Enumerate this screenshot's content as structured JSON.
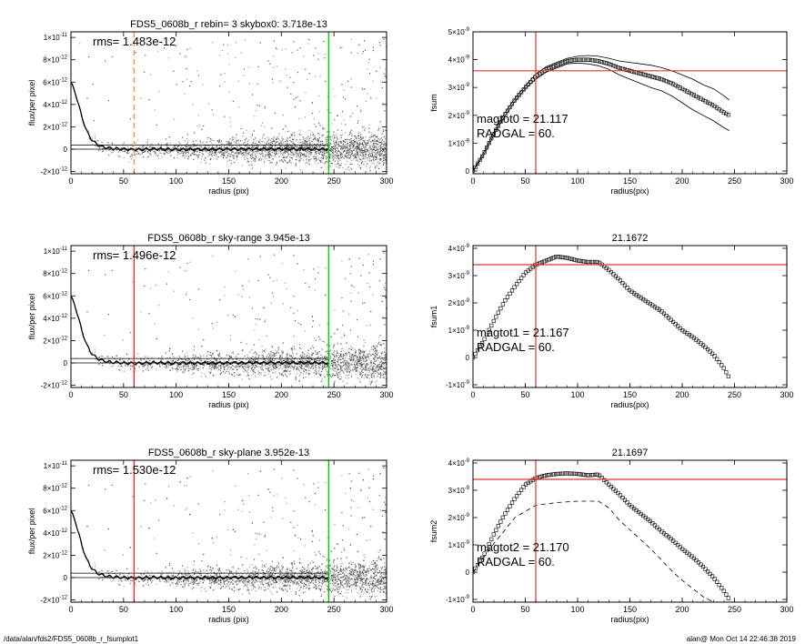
{
  "footer": {
    "path": "/data/alan/fds2/FDS5_0608b_r_fsumplot1",
    "stamp": "alan@  Mon Oct 14 22:46:38 2019"
  },
  "chart_data": [
    {
      "id": "profile0",
      "type": "scatter",
      "title": "FDS5_0608b_r rebin= 3    skybox0:  3.718e-13",
      "xlabel": "radius (pix)",
      "ylabel": "flux/per pixel",
      "xlim": [
        0,
        300
      ],
      "ylim": [
        -2.2e-12,
        1.05e-11
      ],
      "xticks": [
        0,
        50,
        100,
        150,
        200,
        250,
        300
      ],
      "xtick_labels": [
        "0",
        "50",
        "100",
        "150",
        "200",
        "250",
        "300"
      ],
      "yticks": [
        -2e-12,
        0,
        2e-12,
        4e-12,
        6e-12,
        8e-12,
        1e-11
      ],
      "ytick_labels": [
        [
          "-2×10",
          "-12"
        ],
        [
          "0",
          ""
        ],
        [
          "2×10",
          "-12"
        ],
        [
          "4×10",
          "-12"
        ],
        [
          "6×10",
          "-12"
        ],
        [
          "8×10",
          "-12"
        ],
        [
          "1×10",
          "-11"
        ]
      ],
      "annotation": "rms= 1.483e-12",
      "rms": 1.483e-12,
      "sky_level": 3.718e-13,
      "vlines": [
        {
          "x": 60,
          "color": "#e89a3c",
          "style": "dashed"
        },
        {
          "x": 245,
          "color": "#00cc00",
          "style": "solid"
        }
      ],
      "profile": {
        "x": [
          0,
          5,
          10,
          15,
          20,
          25,
          30,
          40,
          50,
          60,
          80,
          100,
          150,
          200,
          245
        ],
        "y": [
          6e-12,
          4.8e-12,
          3e-12,
          1.6e-12,
          8e-13,
          4e-13,
          2e-13,
          5e-14,
          0,
          -5e-14,
          2e-14,
          -3e-14,
          0,
          1e-14,
          0
        ]
      }
    },
    {
      "id": "fsum0",
      "type": "line",
      "title": "",
      "xlabel": "radius(pix)",
      "ylabel": "fsum",
      "xlim": [
        0,
        300
      ],
      "ylim": [
        -1e-10,
        5e-09
      ],
      "xticks": [
        0,
        50,
        100,
        150,
        200,
        250,
        300
      ],
      "xtick_labels": [
        "0",
        "50",
        "100",
        "150",
        "200",
        "250",
        "300"
      ],
      "yticks": [
        0,
        1e-09,
        2e-09,
        3e-09,
        4e-09,
        5e-09
      ],
      "ytick_labels": [
        [
          "0",
          ""
        ],
        [
          "1×10",
          "-9"
        ],
        [
          "2×10",
          "-9"
        ],
        [
          "3×10",
          "-9"
        ],
        [
          "4×10",
          "-9"
        ],
        [
          "5×10",
          "-9"
        ]
      ],
      "annotations": [
        "magtot0 =  21.117",
        "RADGAL =     60."
      ],
      "hline": 3.6e-09,
      "vline": 60,
      "series": [
        {
          "x": [
            0,
            10,
            20,
            30,
            40,
            50,
            60,
            70,
            80,
            90,
            100,
            110,
            120,
            130,
            140,
            150,
            160,
            170,
            180,
            190,
            200,
            210,
            220,
            230,
            240,
            245
          ],
          "y": [
            0,
            6e-10,
            1.35e-09,
            2e-09,
            2.55e-09,
            3e-09,
            3.4e-09,
            3.65e-09,
            3.8e-09,
            3.95e-09,
            4e-09,
            4e-09,
            3.95e-09,
            3.85e-09,
            3.7e-09,
            3.6e-09,
            3.5e-09,
            3.4e-09,
            3.3e-09,
            3.15e-09,
            2.95e-09,
            2.75e-09,
            2.55e-09,
            2.35e-09,
            2.1e-09,
            2e-09
          ]
        }
      ],
      "upper_band": [
        0,
        6.5e-10,
        1.4e-09,
        2.05e-09,
        2.6e-09,
        3.05e-09,
        3.48e-09,
        3.75e-09,
        3.9e-09,
        4.05e-09,
        4.12e-09,
        4.15e-09,
        4.12e-09,
        4.05e-09,
        3.95e-09,
        3.9e-09,
        3.85e-09,
        3.8e-09,
        3.72e-09,
        3.6e-09,
        3.45e-09,
        3.3e-09,
        3.1e-09,
        2.95e-09,
        2.7e-09,
        2.55e-09
      ],
      "lower_band": [
        0,
        5.5e-10,
        1.3e-09,
        1.95e-09,
        2.5e-09,
        2.95e-09,
        3.3e-09,
        3.55e-09,
        3.7e-09,
        3.85e-09,
        3.88e-09,
        3.85e-09,
        3.78e-09,
        3.65e-09,
        3.45e-09,
        3.3e-09,
        3.15e-09,
        3e-09,
        2.88e-09,
        2.7e-09,
        2.45e-09,
        2.2e-09,
        2e-09,
        1.8e-09,
        1.55e-09,
        1.45e-09
      ]
    },
    {
      "id": "profile1",
      "type": "scatter",
      "title": "FDS5_0608b_r sky-range  3.945e-13",
      "xlabel": "radius (pix)",
      "ylabel": "flux/per pixel",
      "xlim": [
        0,
        300
      ],
      "ylim": [
        -2.2e-12,
        1.05e-11
      ],
      "xticks": [
        0,
        50,
        100,
        150,
        200,
        250,
        300
      ],
      "xtick_labels": [
        "0",
        "50",
        "100",
        "150",
        "200",
        "250",
        "300"
      ],
      "yticks": [
        -2e-12,
        0,
        2e-12,
        4e-12,
        6e-12,
        8e-12,
        1e-11
      ],
      "ytick_labels": [
        [
          "-2×10",
          "-12"
        ],
        [
          "0",
          ""
        ],
        [
          "2×10",
          "-12"
        ],
        [
          "4×10",
          "-12"
        ],
        [
          "6×10",
          "-12"
        ],
        [
          "8×10",
          "-12"
        ],
        [
          "1×10",
          "-11"
        ]
      ],
      "annotation": "rms= 1.496e-12",
      "rms": 1.496e-12,
      "sky_level": 3.945e-13,
      "vlines": [
        {
          "x": 60,
          "color": "#e8302a",
          "style": "solid"
        },
        {
          "x": 245,
          "color": "#00cc00",
          "style": "solid"
        }
      ],
      "profile": {
        "x": [
          0,
          5,
          10,
          15,
          20,
          25,
          30,
          40,
          50,
          60,
          80,
          100,
          150,
          200,
          245
        ],
        "y": [
          6e-12,
          4.8e-12,
          3e-12,
          1.6e-12,
          8e-13,
          4e-13,
          2e-13,
          5e-14,
          0,
          -5e-14,
          2e-14,
          -3e-14,
          0,
          1e-14,
          0
        ]
      }
    },
    {
      "id": "fsum1",
      "type": "scatter",
      "title": "21.1672",
      "xlabel": "radius(pix)",
      "ylabel": "fsum1",
      "xlim": [
        0,
        300
      ],
      "ylim": [
        -1.1e-09,
        4.1e-09
      ],
      "xticks": [
        0,
        50,
        100,
        150,
        200,
        250,
        300
      ],
      "xtick_labels": [
        "0",
        "50",
        "100",
        "150",
        "200",
        "250",
        "300"
      ],
      "yticks": [
        -1e-09,
        0,
        1e-09,
        2e-09,
        3e-09,
        4e-09
      ],
      "ytick_labels": [
        [
          "-1×10",
          "-9"
        ],
        [
          "0",
          ""
        ],
        [
          "1×10",
          "-9"
        ],
        [
          "2×10",
          "-9"
        ],
        [
          "3×10",
          "-9"
        ],
        [
          "4×10",
          "-9"
        ]
      ],
      "annotations": [
        "magtot1 =  21.167",
        "RADGAL =     60."
      ],
      "hline": 3.4e-09,
      "vline": 60,
      "series": [
        {
          "x": [
            0,
            10,
            20,
            30,
            40,
            50,
            60,
            70,
            80,
            90,
            100,
            110,
            120,
            130,
            140,
            150,
            160,
            170,
            180,
            190,
            200,
            210,
            220,
            230,
            240,
            245
          ],
          "y": [
            0,
            6e-10,
            1.35e-09,
            2.05e-09,
            2.6e-09,
            3.1e-09,
            3.4e-09,
            3.55e-09,
            3.7e-09,
            3.65e-09,
            3.55e-09,
            3.5e-09,
            3.5e-09,
            3.2e-09,
            2.85e-09,
            2.45e-09,
            2.2e-09,
            1.95e-09,
            1.7e-09,
            1.35e-09,
            1e-09,
            7.5e-10,
            4.5e-10,
            1e-10,
            -4e-10,
            -7.5e-10
          ]
        }
      ]
    },
    {
      "id": "profile2",
      "type": "scatter",
      "title": "FDS5_0608b_r sky-plane  3.952e-13",
      "xlabel": "radius (pix)",
      "ylabel": "flux/per pixel",
      "xlim": [
        0,
        300
      ],
      "ylim": [
        -2.2e-12,
        1.05e-11
      ],
      "xticks": [
        0,
        50,
        100,
        150,
        200,
        250,
        300
      ],
      "xtick_labels": [
        "0",
        "50",
        "100",
        "150",
        "200",
        "250",
        "300"
      ],
      "yticks": [
        -2e-12,
        0,
        2e-12,
        4e-12,
        6e-12,
        8e-12,
        1e-11
      ],
      "ytick_labels": [
        [
          "-2×10",
          "-12"
        ],
        [
          "0",
          ""
        ],
        [
          "2×10",
          "-12"
        ],
        [
          "4×10",
          "-12"
        ],
        [
          "6×10",
          "-12"
        ],
        [
          "8×10",
          "-12"
        ],
        [
          "1×10",
          "-11"
        ]
      ],
      "annotation": "rms= 1.530e-12",
      "rms": 1.53e-12,
      "sky_level": 3.952e-13,
      "vlines": [
        {
          "x": 60,
          "color": "#e8302a",
          "style": "solid"
        },
        {
          "x": 245,
          "color": "#00cc00",
          "style": "solid"
        }
      ],
      "profile": {
        "x": [
          0,
          5,
          10,
          15,
          20,
          25,
          30,
          40,
          50,
          60,
          80,
          100,
          150,
          200,
          245
        ],
        "y": [
          6e-12,
          4.8e-12,
          3e-12,
          1.6e-12,
          8e-13,
          4e-13,
          2e-13,
          5e-14,
          0,
          -5e-14,
          2e-14,
          -3e-14,
          0,
          1e-14,
          0
        ]
      }
    },
    {
      "id": "fsum2",
      "type": "scatter",
      "title": "21.1697",
      "xlabel": "radius(pix)",
      "ylabel": "fsum2",
      "xlim": [
        0,
        300
      ],
      "ylim": [
        -1.1e-09,
        4.1e-09
      ],
      "xticks": [
        0,
        50,
        100,
        150,
        200,
        250,
        300
      ],
      "xtick_labels": [
        "0",
        "50",
        "100",
        "150",
        "200",
        "250",
        "300"
      ],
      "yticks": [
        -1e-09,
        0,
        1e-09,
        2e-09,
        3e-09,
        4e-09
      ],
      "ytick_labels": [
        [
          "-1×10",
          "-9"
        ],
        [
          "0",
          ""
        ],
        [
          "1×10",
          "-9"
        ],
        [
          "2×10",
          "-9"
        ],
        [
          "3×10",
          "-9"
        ],
        [
          "4×10",
          "-9"
        ]
      ],
      "annotations": [
        "magtot2 =  21.170",
        "RADGAL =     60."
      ],
      "hline": 3.4e-09,
      "vline": 60,
      "series": [
        {
          "x": [
            0,
            10,
            20,
            30,
            40,
            50,
            60,
            70,
            80,
            90,
            100,
            110,
            120,
            130,
            140,
            150,
            160,
            170,
            180,
            190,
            200,
            210,
            220,
            230,
            240,
            245
          ],
          "y": [
            0,
            6e-10,
            1.4e-09,
            2.1e-09,
            2.7e-09,
            3.2e-09,
            3.45e-09,
            3.55e-09,
            3.6e-09,
            3.62e-09,
            3.6e-09,
            3.55e-09,
            3.58e-09,
            3.2e-09,
            2.85e-09,
            2.45e-09,
            2.15e-09,
            1.85e-09,
            1.5e-09,
            1.2e-09,
            8.5e-10,
            5.5e-10,
            2e-10,
            -2e-10,
            -7e-10,
            -1e-09
          ]
        }
      ],
      "dashed": {
        "x": [
          0,
          20,
          40,
          60,
          80,
          100,
          120,
          130,
          140,
          150,
          160,
          170,
          180,
          190,
          200,
          210,
          220,
          230
        ],
        "y": [
          0,
          1.05e-09,
          2e-09,
          2.45e-09,
          2.55e-09,
          2.6e-09,
          2.6e-09,
          2.35e-09,
          1.9e-09,
          1.55e-09,
          1.2e-09,
          8.5e-10,
          4.5e-10,
          5e-11,
          -3e-10,
          -6e-10,
          -9e-10,
          -1.1e-09
        ]
      }
    }
  ]
}
